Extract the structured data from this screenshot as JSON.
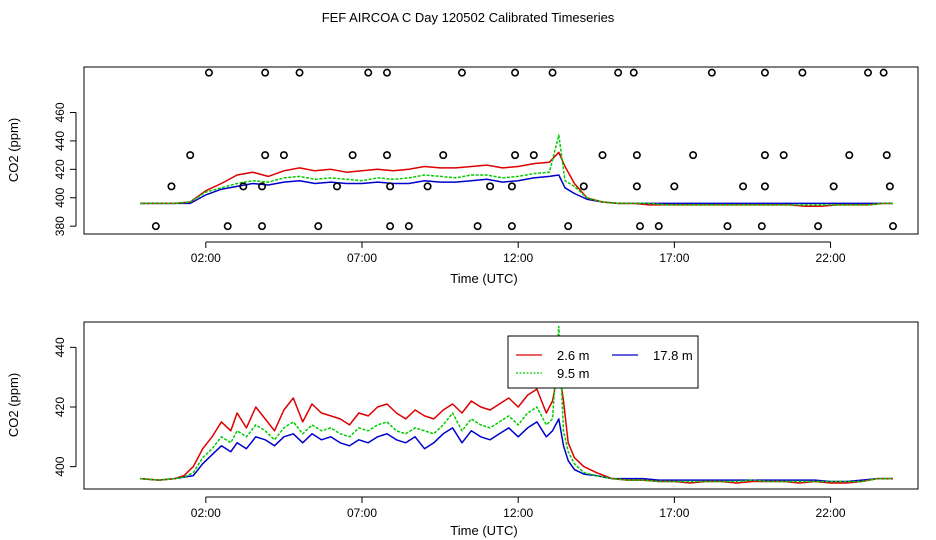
{
  "title": "FEF AIRCOA C  Day 120502  Calibrated Timeseries",
  "colors": {
    "s2_6": "#dd0000",
    "s9_5": "#00cc00",
    "s17_8": "#0000cc",
    "axis": "#000000",
    "points": "#000000"
  },
  "chart_data": [
    {
      "type": "line",
      "subtype": "scatter-overlay",
      "xlabel": "Time (UTC)",
      "ylabel": "CO2 (ppm)",
      "xlim": [
        -1.9,
        24.8
      ],
      "ylim": [
        374.5,
        492
      ],
      "xticks": [
        2,
        7,
        12,
        17,
        22
      ],
      "xtick_labels": [
        "02:00",
        "07:00",
        "12:00",
        "17:00",
        "22:00"
      ],
      "yticks": [
        380,
        400,
        420,
        440,
        460
      ],
      "ytick_labels": [
        "380",
        "400",
        "420",
        "440",
        "460"
      ],
      "x": [
        -0.1,
        0.5,
        1.0,
        1.5,
        2.0,
        2.5,
        3.0,
        3.5,
        4.0,
        4.5,
        5.0,
        5.5,
        6.0,
        6.5,
        7.0,
        7.5,
        8.0,
        8.5,
        9.0,
        9.5,
        10.0,
        10.5,
        11.0,
        11.5,
        12.0,
        12.5,
        13.0,
        13.3,
        13.5,
        13.8,
        14.2,
        14.7,
        15.2,
        15.7,
        16.2,
        16.7,
        17.2,
        17.7,
        18.2,
        18.7,
        19.2,
        19.7,
        20.2,
        20.7,
        21.2,
        21.7,
        22.2,
        22.7,
        23.2,
        23.7,
        24.0
      ],
      "series": [
        {
          "name": "2.6 m",
          "values": [
            396,
            396,
            396,
            397,
            405,
            410,
            416,
            418,
            415,
            419,
            421,
            419,
            420,
            418,
            419,
            420,
            419,
            420,
            422,
            421,
            421,
            422,
            423,
            421,
            422,
            424,
            425,
            432,
            422,
            410,
            400,
            397,
            396,
            396,
            395,
            395,
            395,
            395,
            395,
            395,
            395,
            395,
            395,
            395,
            394,
            394,
            395,
            395,
            395,
            396,
            396
          ]
        },
        {
          "name": "9.5 m",
          "values": [
            396,
            396,
            396,
            397,
            404,
            407,
            410,
            412,
            411,
            414,
            415,
            413,
            414,
            413,
            412,
            414,
            413,
            414,
            416,
            415,
            414,
            416,
            416,
            414,
            415,
            417,
            418,
            444,
            412,
            408,
            400,
            397,
            396,
            396,
            396,
            395,
            395,
            395,
            395,
            395,
            395,
            395,
            395,
            395,
            395,
            395,
            395,
            395,
            395,
            396,
            396
          ]
        },
        {
          "name": "17.8 m",
          "values": [
            396,
            396,
            396,
            396,
            402,
            406,
            408,
            410,
            409,
            411,
            412,
            410,
            411,
            410,
            410,
            411,
            410,
            410,
            412,
            411,
            411,
            412,
            413,
            411,
            412,
            414,
            415,
            416,
            407,
            403,
            399,
            397,
            396,
            396,
            396,
            396,
            396,
            396,
            396,
            396,
            396,
            396,
            396,
            396,
            396,
            396,
            396,
            396,
            396,
            396,
            396
          ]
        }
      ],
      "markers": [
        {
          "x": 2.1,
          "y": 488
        },
        {
          "x": 3.9,
          "y": 488
        },
        {
          "x": 5.0,
          "y": 488
        },
        {
          "x": 7.2,
          "y": 488
        },
        {
          "x": 7.8,
          "y": 488
        },
        {
          "x": 10.2,
          "y": 488
        },
        {
          "x": 11.9,
          "y": 488
        },
        {
          "x": 13.1,
          "y": 488
        },
        {
          "x": 15.2,
          "y": 488
        },
        {
          "x": 15.7,
          "y": 488
        },
        {
          "x": 18.2,
          "y": 488
        },
        {
          "x": 19.9,
          "y": 488
        },
        {
          "x": 21.1,
          "y": 488
        },
        {
          "x": 23.2,
          "y": 488
        },
        {
          "x": 23.7,
          "y": 488
        },
        {
          "x": 1.5,
          "y": 430
        },
        {
          "x": 3.9,
          "y": 430
        },
        {
          "x": 4.5,
          "y": 430
        },
        {
          "x": 6.7,
          "y": 430
        },
        {
          "x": 7.8,
          "y": 430
        },
        {
          "x": 9.6,
          "y": 430
        },
        {
          "x": 11.9,
          "y": 430
        },
        {
          "x": 12.5,
          "y": 430
        },
        {
          "x": 14.7,
          "y": 430
        },
        {
          "x": 15.8,
          "y": 430
        },
        {
          "x": 17.6,
          "y": 430
        },
        {
          "x": 19.9,
          "y": 430
        },
        {
          "x": 20.5,
          "y": 430
        },
        {
          "x": 22.6,
          "y": 430
        },
        {
          "x": 23.8,
          "y": 430
        },
        {
          "x": 0.9,
          "y": 408
        },
        {
          "x": 3.2,
          "y": 408
        },
        {
          "x": 3.8,
          "y": 408
        },
        {
          "x": 6.2,
          "y": 408
        },
        {
          "x": 7.9,
          "y": 408
        },
        {
          "x": 9.1,
          "y": 408
        },
        {
          "x": 11.1,
          "y": 408
        },
        {
          "x": 11.8,
          "y": 408
        },
        {
          "x": 14.1,
          "y": 408
        },
        {
          "x": 15.8,
          "y": 408
        },
        {
          "x": 17.0,
          "y": 408
        },
        {
          "x": 19.2,
          "y": 408
        },
        {
          "x": 19.9,
          "y": 408
        },
        {
          "x": 22.1,
          "y": 408
        },
        {
          "x": 23.9,
          "y": 408
        },
        {
          "x": 0.4,
          "y": 380
        },
        {
          "x": 2.7,
          "y": 380
        },
        {
          "x": 3.8,
          "y": 380
        },
        {
          "x": 5.6,
          "y": 380
        },
        {
          "x": 7.9,
          "y": 380
        },
        {
          "x": 8.5,
          "y": 380
        },
        {
          "x": 10.7,
          "y": 380
        },
        {
          "x": 11.8,
          "y": 380
        },
        {
          "x": 13.6,
          "y": 380
        },
        {
          "x": 15.9,
          "y": 380
        },
        {
          "x": 16.5,
          "y": 380
        },
        {
          "x": 18.7,
          "y": 380
        },
        {
          "x": 19.8,
          "y": 380
        },
        {
          "x": 21.6,
          "y": 380
        },
        {
          "x": 24.0,
          "y": 380
        }
      ]
    },
    {
      "type": "line",
      "xlabel": "Time (UTC)",
      "ylabel": "CO2 (ppm)",
      "xlim": [
        -1.9,
        24.8
      ],
      "ylim": [
        392.5,
        448.5
      ],
      "xticks": [
        2,
        7,
        12,
        17,
        22
      ],
      "xtick_labels": [
        "02:00",
        "07:00",
        "12:00",
        "17:00",
        "22:00"
      ],
      "yticks": [
        400,
        420,
        440
      ],
      "ytick_labels": [
        "400",
        "420",
        "440"
      ],
      "legend": {
        "position": "top-center",
        "entries": [
          {
            "label": "2.6 m",
            "series": 0
          },
          {
            "label": "17.8 m",
            "series": 2
          },
          {
            "label": "9.5 m",
            "series": 1
          }
        ]
      },
      "x": [
        -0.1,
        0.5,
        1.0,
        1.3,
        1.6,
        1.9,
        2.2,
        2.5,
        2.8,
        3.0,
        3.3,
        3.6,
        3.9,
        4.2,
        4.5,
        4.8,
        5.1,
        5.4,
        5.7,
        6.0,
        6.3,
        6.6,
        6.9,
        7.2,
        7.5,
        7.8,
        8.1,
        8.4,
        8.7,
        9.0,
        9.3,
        9.6,
        9.9,
        10.2,
        10.5,
        10.8,
        11.1,
        11.4,
        11.7,
        12.0,
        12.3,
        12.6,
        12.9,
        13.1,
        13.3,
        13.45,
        13.6,
        13.8,
        14.1,
        14.5,
        15.0,
        15.5,
        16.0,
        16.5,
        17.0,
        17.5,
        18.0,
        18.5,
        19.0,
        19.5,
        20.0,
        20.5,
        21.0,
        21.5,
        22.0,
        22.5,
        23.0,
        23.5,
        24.0
      ],
      "series": [
        {
          "name": "2.6 m",
          "values": [
            396,
            395.5,
            396,
            397,
            400,
            406,
            410,
            415,
            412,
            418,
            413,
            420,
            416,
            412,
            419,
            423,
            415,
            421,
            418,
            417,
            416,
            414,
            418,
            417,
            420,
            421,
            418,
            416,
            419,
            417,
            416,
            419,
            421,
            418,
            422,
            420,
            419,
            421,
            423,
            420,
            424,
            426,
            418,
            422,
            433,
            422,
            408,
            403,
            400,
            398,
            396,
            395.5,
            395.5,
            395,
            395,
            394.5,
            395,
            395,
            394.5,
            395,
            395,
            395,
            394.5,
            395,
            394.5,
            394.5,
            395,
            396,
            396
          ]
        },
        {
          "name": "9.5 m",
          "values": [
            396,
            395.5,
            396,
            396.5,
            398,
            403,
            406,
            410,
            408,
            412,
            410,
            414,
            412,
            409,
            413,
            415,
            411,
            414,
            412,
            413,
            411,
            410,
            413,
            412,
            414,
            415,
            412,
            411,
            413,
            412,
            411,
            414,
            418,
            412,
            416,
            414,
            413,
            415,
            417,
            414,
            418,
            420,
            414,
            416,
            447,
            412,
            405,
            401,
            398,
            397,
            396,
            395.5,
            395.5,
            395,
            395,
            395,
            395,
            395,
            395,
            395.5,
            395,
            395,
            395,
            395,
            395,
            395,
            395,
            396,
            396
          ]
        },
        {
          "name": "17.8 m",
          "values": [
            396,
            395.5,
            396,
            396.5,
            397,
            401,
            404,
            407,
            405,
            408,
            406,
            410,
            409,
            407,
            410,
            411,
            408,
            411,
            409,
            410,
            408,
            407,
            409,
            408,
            410,
            411,
            409,
            408,
            410,
            406,
            408,
            411,
            413,
            408,
            412,
            410,
            409,
            411,
            413,
            410,
            413,
            415,
            410,
            412,
            416,
            407,
            402,
            399,
            397.5,
            397,
            396,
            396,
            396,
            395.5,
            395.5,
            395.5,
            395.5,
            395.5,
            395.5,
            395.5,
            395.5,
            395.5,
            395.5,
            395.5,
            395,
            395,
            395.5,
            396,
            396
          ]
        }
      ]
    }
  ]
}
